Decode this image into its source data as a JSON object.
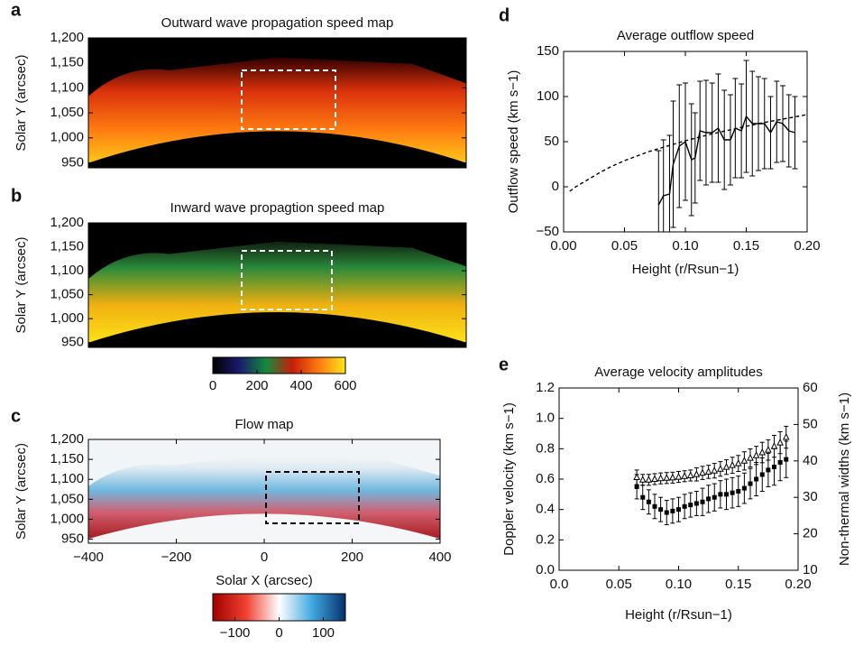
{
  "chart_data": [
    {
      "type": "heatmap",
      "panel": "a",
      "title": "Outward wave propagation speed map",
      "ylabel": "Solar Y (arcsec)",
      "ylim": [
        940,
        1200
      ],
      "yticks": [
        {
          "value": 950,
          "label": "950"
        },
        {
          "value": 1000,
          "label": "1,000"
        },
        {
          "value": 1050,
          "label": "1,050"
        },
        {
          "value": 1100,
          "label": "1,100"
        },
        {
          "value": 1150,
          "label": "1,150"
        },
        {
          "value": 1200,
          "label": "1,200"
        }
      ],
      "colormap": [
        "#000000",
        "#1a1a6e",
        "#138a3c",
        "#c81e0a",
        "#ff7a10",
        "#ffe81a"
      ]
    },
    {
      "type": "heatmap",
      "panel": "b",
      "title": "Inward wave propagtion speed map",
      "ylabel": "Solar Y (arcsec)",
      "ylim": [
        940,
        1200
      ],
      "yticks": [
        {
          "value": 950,
          "label": "950"
        },
        {
          "value": 1000,
          "label": "1,000"
        },
        {
          "value": 1050,
          "label": "1,050"
        },
        {
          "value": 1100,
          "label": "1,100"
        },
        {
          "value": 1150,
          "label": "1,150"
        },
        {
          "value": 1200,
          "label": "1,200"
        }
      ],
      "colormap": [
        "#000000",
        "#1a1a6e",
        "#138a3c",
        "#c81e0a",
        "#ff7a10",
        "#ffe81a"
      ],
      "clim": [
        0,
        600
      ],
      "cticks": [
        0,
        200,
        400,
        600
      ]
    },
    {
      "type": "heatmap",
      "panel": "c",
      "title": "Flow map",
      "ylabel": "Solar Y (arcsec)",
      "xlabel": "Solar X (arcsec)",
      "xlim": [
        -400,
        400
      ],
      "xticks": [
        {
          "value": -400,
          "label": "−400"
        },
        {
          "value": -200,
          "label": "−200"
        },
        0,
        200,
        400
      ],
      "ylim": [
        940,
        1200
      ],
      "yticks": [
        {
          "value": 950,
          "label": "950"
        },
        {
          "value": 1000,
          "label": "1,000"
        },
        {
          "value": 1050,
          "label": "1,050"
        },
        {
          "value": 1100,
          "label": "1,100"
        },
        {
          "value": 1150,
          "label": "1,150"
        },
        {
          "value": 1200,
          "label": "1,200"
        }
      ],
      "colormap": [
        "#a00000",
        "#f04030",
        "#ffffff",
        "#40a8e0",
        "#08306b"
      ],
      "clim": [
        -150,
        150
      ],
      "cticks": [
        {
          "value": -100,
          "label": "−100"
        },
        0,
        100
      ]
    },
    {
      "type": "line",
      "panel": "d",
      "title": "Average outflow speed",
      "xlabel": "Height (r/Rsun−1)",
      "ylabel": "Outflow speed (km s−1)",
      "xlim": [
        0,
        0.2
      ],
      "xticks": [
        {
          "value": 0,
          "label": "0.00"
        },
        {
          "value": 0.05,
          "label": "0.05"
        },
        {
          "value": 0.1,
          "label": "0.10"
        },
        {
          "value": 0.15,
          "label": "0.15"
        },
        {
          "value": 0.2,
          "label": "0.20"
        }
      ],
      "ylim": [
        -50,
        150
      ],
      "yticks": [
        {
          "value": -50,
          "label": "−50"
        },
        0,
        50,
        100,
        150
      ],
      "series": [
        {
          "style": "solid",
          "color": "#000000",
          "x": [
            0.078,
            0.082,
            0.087,
            0.09,
            0.095,
            0.1,
            0.105,
            0.108,
            0.112,
            0.117,
            0.122,
            0.127,
            0.132,
            0.137,
            0.141,
            0.146,
            0.15,
            0.155,
            0.16,
            0.165,
            0.17,
            0.175,
            0.18,
            0.185,
            0.19
          ],
          "values": [
            -20,
            -10,
            -8,
            25,
            45,
            50,
            30,
            32,
            62,
            60,
            60,
            65,
            52,
            52,
            65,
            62,
            78,
            70,
            70,
            70,
            60,
            72,
            70,
            62,
            60
          ],
          "errors": [
            60,
            62,
            65,
            70,
            68,
            65,
            62,
            50,
            55,
            58,
            55,
            60,
            55,
            50,
            55,
            52,
            62,
            58,
            52,
            50,
            40,
            45,
            42,
            40,
            40
          ]
        },
        {
          "style": "dashed",
          "color": "#000000",
          "x": [
            0.005,
            0.01,
            0.02,
            0.03,
            0.04,
            0.05,
            0.06,
            0.07,
            0.08,
            0.09,
            0.1,
            0.12,
            0.14,
            0.16,
            0.18,
            0.2
          ],
          "values": [
            -5,
            0,
            8,
            16,
            23,
            29,
            34,
            39,
            43,
            47,
            51,
            58,
            64,
            70,
            75,
            80
          ]
        }
      ]
    },
    {
      "type": "errorpoints",
      "panel": "e",
      "title": "Average velocity amplitudes",
      "xlabel": "Height (r/Rsun−1)",
      "ylabel": "Doppler velocity (km s−1)",
      "y2label": "Non-thermal widths (km s−1)",
      "xlim": [
        0,
        0.2
      ],
      "xticks": [
        {
          "value": 0,
          "label": "0.0"
        },
        {
          "value": 0.05,
          "label": "0.05"
        },
        {
          "value": 0.1,
          "label": "0.10"
        },
        {
          "value": 0.15,
          "label": "0.15"
        },
        {
          "value": 0.2,
          "label": "0.20"
        }
      ],
      "ylim": [
        0,
        1.2
      ],
      "yticks": [
        {
          "value": 0,
          "label": "0.0"
        },
        0.2,
        0.4,
        0.6,
        0.8,
        {
          "value": 1,
          "label": "1.0"
        },
        1.2
      ],
      "y2lim": [
        10,
        60
      ],
      "y2ticks": [
        10,
        20,
        30,
        40,
        50,
        60
      ],
      "x": [
        0.065,
        0.07,
        0.075,
        0.08,
        0.085,
        0.09,
        0.095,
        0.1,
        0.105,
        0.11,
        0.115,
        0.12,
        0.125,
        0.13,
        0.135,
        0.14,
        0.145,
        0.15,
        0.155,
        0.16,
        0.165,
        0.17,
        0.175,
        0.18,
        0.185,
        0.19
      ],
      "series": [
        {
          "marker": "square",
          "color": "#000000",
          "values": [
            0.55,
            0.48,
            0.45,
            0.42,
            0.4,
            0.38,
            0.39,
            0.4,
            0.42,
            0.43,
            0.44,
            0.45,
            0.47,
            0.48,
            0.5,
            0.5,
            0.51,
            0.52,
            0.54,
            0.57,
            0.6,
            0.63,
            0.66,
            0.68,
            0.71,
            0.73
          ],
          "errors": [
            0.08,
            0.08,
            0.08,
            0.08,
            0.08,
            0.08,
            0.08,
            0.08,
            0.08,
            0.08,
            0.08,
            0.09,
            0.09,
            0.09,
            0.09,
            0.1,
            0.1,
            0.1,
            0.1,
            0.1,
            0.11,
            0.11,
            0.11,
            0.12,
            0.12,
            0.12
          ]
        },
        {
          "marker": "triangle",
          "color": "#000000",
          "axis": "y2",
          "values": [
            35.5,
            34.8,
            34.8,
            35,
            35.2,
            35.3,
            35.4,
            35.6,
            35.8,
            36,
            36.3,
            36.7,
            37,
            37.3,
            37.8,
            38.3,
            38.8,
            39.3,
            40,
            40.8,
            41.5,
            42.3,
            43,
            44,
            45,
            46.5
          ],
          "errors": [
            2,
            1.5,
            1.5,
            1.5,
            1.5,
            1.5,
            1.5,
            1.5,
            1.5,
            1.5,
            1.8,
            1.8,
            1.8,
            2,
            2,
            2,
            2.2,
            2.2,
            2.5,
            2.5,
            2.5,
            2.8,
            2.8,
            3,
            3,
            3
          ]
        }
      ]
    }
  ]
}
